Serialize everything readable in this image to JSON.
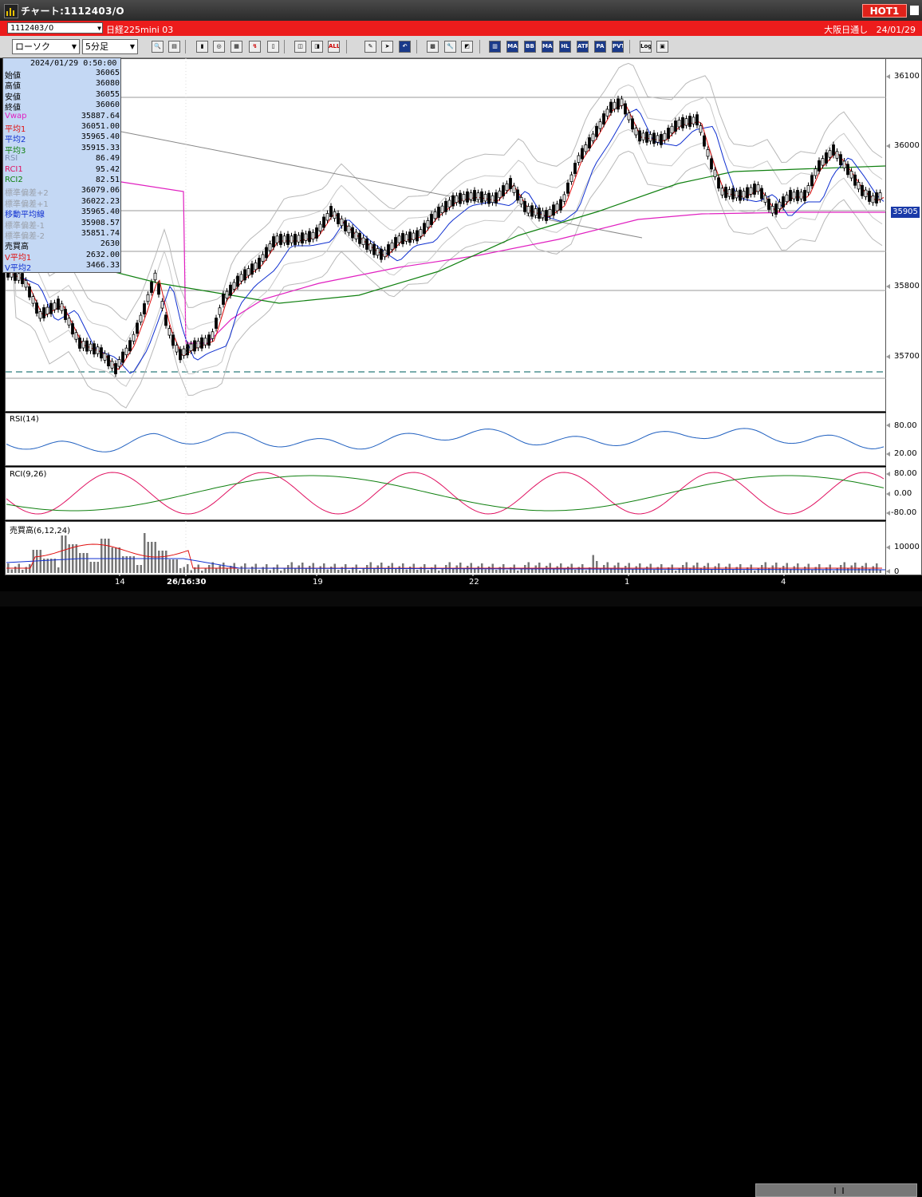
{
  "window": {
    "title": "チャート:1112403/O",
    "hot_label": "HOT1"
  },
  "symbol_bar": {
    "code": "1112403/O",
    "name": "日経225mini 03",
    "session": "大阪日通し",
    "date": "24/01/29"
  },
  "toolbar": {
    "chart_type": "ローソク",
    "interval": "5分足"
  },
  "main_chart": {
    "y_ticks": [
      "36100",
      "36000",
      "35800",
      "35700"
    ],
    "current_price": "35905"
  },
  "info_panel": {
    "datetime": "2024/01/29  0:50:00",
    "rows": [
      {
        "label": "始値",
        "value": "36065",
        "color": "#000000"
      },
      {
        "label": "高値",
        "value": "36080",
        "color": "#000000"
      },
      {
        "label": "安値",
        "value": "36055",
        "color": "#000000"
      },
      {
        "label": "終値",
        "value": "36060",
        "color": "#000000"
      },
      {
        "label": "Vwap",
        "value": "35887.64",
        "color": "#e020c0"
      },
      {
        "label": "平均1",
        "value": "36051.00",
        "color": "#e01010"
      },
      {
        "label": "平均2",
        "value": "35965.40",
        "color": "#1030d0"
      },
      {
        "label": "平均3",
        "value": "35915.33",
        "color": "#108010"
      },
      {
        "label": "RSI",
        "value": "86.49",
        "color": "#8090b0"
      },
      {
        "label": "RCI1",
        "value": "95.42",
        "color": "#e01060"
      },
      {
        "label": "RCI2",
        "value": "82.51",
        "color": "#108010"
      },
      {
        "label": "標準偏差+2",
        "value": "36079.06",
        "color": "#9aa0aa"
      },
      {
        "label": "標準偏差+1",
        "value": "36022.23",
        "color": "#9aa0aa"
      },
      {
        "label": "移動平均線",
        "value": "35965.40",
        "color": "#1030d0"
      },
      {
        "label": "標準偏差-1",
        "value": "35908.57",
        "color": "#9aa0aa"
      },
      {
        "label": "標準偏差-2",
        "value": "35851.74",
        "color": "#9aa0aa"
      },
      {
        "label": "売買高",
        "value": "2630",
        "color": "#000000"
      },
      {
        "label": "V平均1",
        "value": "2632.00",
        "color": "#e01010"
      },
      {
        "label": "V平均2",
        "value": "3466.33",
        "color": "#1030d0"
      }
    ]
  },
  "rsi_panel": {
    "title": "RSI(14)",
    "y_ticks": [
      "80.00",
      "20.00"
    ]
  },
  "rci_panel": {
    "title": "RCI(9,26)",
    "y_ticks": [
      "80.00",
      "0.00",
      "-80.00"
    ]
  },
  "volume_panel": {
    "title": "売買高(6,12,24)",
    "y_ticks": [
      "10000",
      "0"
    ]
  },
  "x_axis": {
    "labels": [
      "14",
      "26/16:30",
      "19",
      "22",
      "1",
      "4"
    ]
  },
  "colors": {
    "accent": "#ec1c1c",
    "price_tag": "#1a3aa8",
    "info_bg": "#c4d8f4"
  }
}
